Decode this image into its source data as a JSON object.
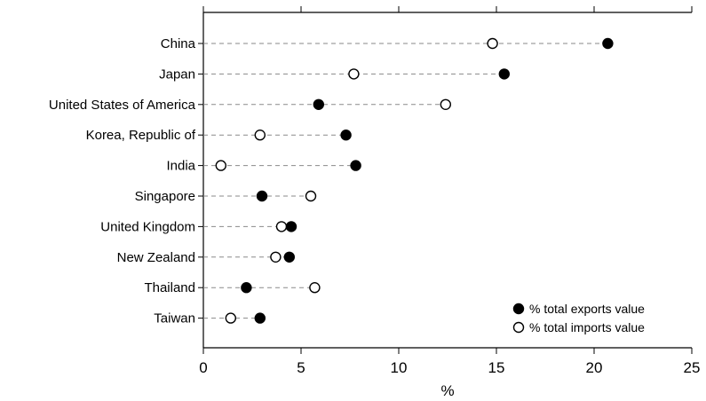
{
  "chart_data": {
    "type": "dot",
    "categories": [
      "China",
      "Japan",
      "United States of America",
      "Korea, Republic of",
      "India",
      "Singapore",
      "United Kingdom",
      "New Zealand",
      "Thailand",
      "Taiwan"
    ],
    "series": [
      {
        "name": "% total exports value",
        "marker": "filled-circle",
        "values": [
          20.7,
          15.4,
          5.9,
          7.3,
          7.8,
          3.0,
          4.5,
          4.4,
          2.2,
          2.9
        ]
      },
      {
        "name": "% total imports value",
        "marker": "open-circle",
        "values": [
          14.8,
          7.7,
          12.4,
          2.9,
          0.9,
          5.5,
          4.0,
          3.7,
          5.7,
          1.4
        ]
      }
    ],
    "xlabel": "%",
    "xlim": [
      0,
      25
    ],
    "xticks": [
      0,
      5,
      10,
      15,
      20,
      25
    ],
    "legend_position": "bottom-right",
    "colors": {
      "exports": "#000000",
      "imports": "#ffffff",
      "guide": "#8a8a8a"
    }
  }
}
